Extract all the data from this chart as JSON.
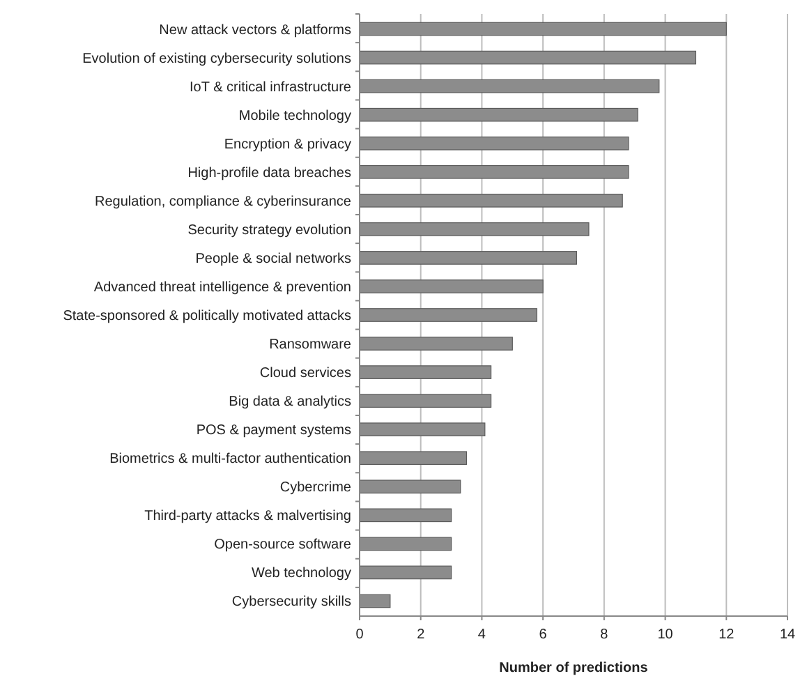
{
  "chart_data": {
    "type": "bar",
    "orientation": "horizontal",
    "xlabel": "Number of predictions",
    "categories": [
      "New attack vectors & platforms",
      "Evolution of existing cybersecurity solutions",
      "IoT & critical infrastructure",
      "Mobile technology",
      "Encryption & privacy",
      "High-profile data breaches",
      "Regulation, compliance & cyberinsurance",
      "Security strategy evolution",
      "People & social networks",
      "Advanced threat intelligence & prevention",
      "State-sponsored & politically motivated attacks",
      "Ransomware",
      "Cloud services",
      "Big data & analytics",
      "POS & payment systems",
      "Biometrics & multi-factor authentication",
      "Cybercrime",
      "Third-party attacks & malvertising",
      "Open-source software",
      "Web technology",
      "Cybersecurity skills"
    ],
    "values": [
      12,
      11,
      9.8,
      9.1,
      8.8,
      8.8,
      8.6,
      7.5,
      7.1,
      6,
      5.8,
      5,
      4.3,
      4.3,
      4.1,
      3.5,
      3.3,
      3,
      3,
      3,
      1
    ],
    "color": "#8c8c8c",
    "xlim": [
      0,
      14
    ],
    "xticks": [
      0,
      2,
      4,
      6,
      8,
      10,
      12,
      14
    ],
    "grid": "x"
  }
}
